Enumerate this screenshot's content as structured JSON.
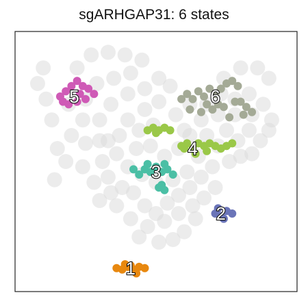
{
  "chart_data": {
    "type": "scatter",
    "title": "sgARHGAP31: 6 states",
    "xlabel": "",
    "ylabel": "",
    "grid": false,
    "legend": "none",
    "colors": {
      "background_cells": "#dcdcdc",
      "label_text": "#ffffff",
      "label_outline": "#111111",
      "frame": "#222222"
    },
    "background_cells": [
      [
        0.08,
        0.8
      ],
      [
        0.1,
        0.86
      ],
      [
        0.11,
        0.74
      ],
      [
        0.13,
        0.66
      ],
      [
        0.15,
        0.55
      ],
      [
        0.14,
        0.43
      ],
      [
        0.18,
        0.5
      ],
      [
        0.2,
        0.6
      ],
      [
        0.19,
        0.72
      ],
      [
        0.22,
        0.86
      ],
      [
        0.27,
        0.91
      ],
      [
        0.33,
        0.92
      ],
      [
        0.39,
        0.91
      ],
      [
        0.45,
        0.89
      ],
      [
        0.41,
        0.84
      ],
      [
        0.35,
        0.82
      ],
      [
        0.29,
        0.8
      ],
      [
        0.25,
        0.74
      ],
      [
        0.24,
        0.66
      ],
      [
        0.25,
        0.57
      ],
      [
        0.24,
        0.48
      ],
      [
        0.28,
        0.42
      ],
      [
        0.33,
        0.44
      ],
      [
        0.31,
        0.5
      ],
      [
        0.3,
        0.58
      ],
      [
        0.3,
        0.66
      ],
      [
        0.34,
        0.72
      ],
      [
        0.4,
        0.76
      ],
      [
        0.46,
        0.78
      ],
      [
        0.51,
        0.82
      ],
      [
        0.55,
        0.79
      ],
      [
        0.51,
        0.73
      ],
      [
        0.46,
        0.7
      ],
      [
        0.4,
        0.66
      ],
      [
        0.37,
        0.6
      ],
      [
        0.36,
        0.53
      ],
      [
        0.4,
        0.48
      ],
      [
        0.45,
        0.45
      ],
      [
        0.5,
        0.42
      ],
      [
        0.56,
        0.43
      ],
      [
        0.61,
        0.46
      ],
      [
        0.65,
        0.52
      ],
      [
        0.68,
        0.6
      ],
      [
        0.72,
        0.56
      ],
      [
        0.75,
        0.62
      ],
      [
        0.79,
        0.58
      ],
      [
        0.83,
        0.62
      ],
      [
        0.87,
        0.58
      ],
      [
        0.84,
        0.53
      ],
      [
        0.8,
        0.52
      ],
      [
        0.76,
        0.5
      ],
      [
        0.7,
        0.48
      ],
      [
        0.66,
        0.44
      ],
      [
        0.62,
        0.4
      ],
      [
        0.58,
        0.37
      ],
      [
        0.54,
        0.34
      ],
      [
        0.5,
        0.3
      ],
      [
        0.46,
        0.33
      ],
      [
        0.42,
        0.38
      ],
      [
        0.38,
        0.4
      ],
      [
        0.34,
        0.38
      ],
      [
        0.3,
        0.35
      ],
      [
        0.36,
        0.33
      ],
      [
        0.41,
        0.28
      ],
      [
        0.47,
        0.25
      ],
      [
        0.53,
        0.27
      ],
      [
        0.58,
        0.3
      ],
      [
        0.63,
        0.33
      ],
      [
        0.67,
        0.36
      ],
      [
        0.71,
        0.4
      ],
      [
        0.64,
        0.28
      ],
      [
        0.6,
        0.23
      ],
      [
        0.56,
        0.2
      ],
      [
        0.51,
        0.19
      ],
      [
        0.44,
        0.21
      ],
      [
        0.48,
        0.56
      ],
      [
        0.53,
        0.52
      ],
      [
        0.58,
        0.55
      ],
      [
        0.6,
        0.62
      ],
      [
        0.57,
        0.68
      ],
      [
        0.62,
        0.72
      ],
      [
        0.68,
        0.72
      ],
      [
        0.73,
        0.76
      ],
      [
        0.78,
        0.74
      ],
      [
        0.83,
        0.76
      ],
      [
        0.88,
        0.72
      ],
      [
        0.91,
        0.66
      ],
      [
        0.9,
        0.62
      ],
      [
        0.84,
        0.68
      ],
      [
        0.78,
        0.68
      ],
      [
        0.72,
        0.68
      ],
      [
        0.66,
        0.66
      ],
      [
        0.62,
        0.6
      ],
      [
        0.74,
        0.82
      ],
      [
        0.8,
        0.86
      ],
      [
        0.86,
        0.86
      ],
      [
        0.9,
        0.82
      ],
      [
        0.44,
        0.62
      ],
      [
        0.49,
        0.64
      ],
      [
        0.43,
        0.55
      ],
      [
        0.33,
        0.58
      ]
    ],
    "states": [
      {
        "label": "1",
        "color": "#e8880f",
        "center": [
          0.41,
          0.09
        ],
        "label_pos": [
          0.41,
          0.09
        ],
        "points": [
          [
            0.36,
            0.09
          ],
          [
            0.38,
            0.085
          ],
          [
            0.4,
            0.095
          ],
          [
            0.42,
            0.085
          ],
          [
            0.44,
            0.095
          ],
          [
            0.46,
            0.09
          ],
          [
            0.39,
            0.105
          ],
          [
            0.43,
            0.07
          ],
          [
            0.41,
            0.1
          ]
        ]
      },
      {
        "label": "2",
        "color": "#6a74b8",
        "center": [
          0.74,
          0.3
        ],
        "label_pos": [
          0.73,
          0.3
        ],
        "points": [
          [
            0.71,
            0.3
          ],
          [
            0.73,
            0.29
          ],
          [
            0.75,
            0.31
          ],
          [
            0.77,
            0.3
          ],
          [
            0.74,
            0.28
          ],
          [
            0.72,
            0.32
          ]
        ]
      },
      {
        "label": "3",
        "color": "#4bbfa5",
        "center": [
          0.5,
          0.46
        ],
        "label_pos": [
          0.5,
          0.46
        ],
        "points": [
          [
            0.42,
            0.47
          ],
          [
            0.44,
            0.45
          ],
          [
            0.46,
            0.47
          ],
          [
            0.48,
            0.46
          ],
          [
            0.5,
            0.48
          ],
          [
            0.52,
            0.46
          ],
          [
            0.54,
            0.47
          ],
          [
            0.56,
            0.45
          ],
          [
            0.47,
            0.49
          ],
          [
            0.53,
            0.49
          ],
          [
            0.51,
            0.4
          ],
          [
            0.53,
            0.39
          ],
          [
            0.52,
            0.41
          ]
        ]
      },
      {
        "label": "4",
        "color": "#9ac848",
        "center": [
          0.62,
          0.56
        ],
        "label_pos": [
          0.63,
          0.55
        ],
        "points": [
          [
            0.47,
            0.62
          ],
          [
            0.49,
            0.63
          ],
          [
            0.51,
            0.62
          ],
          [
            0.53,
            0.63
          ],
          [
            0.55,
            0.62
          ],
          [
            0.5,
            0.61
          ],
          [
            0.59,
            0.56
          ],
          [
            0.61,
            0.57
          ],
          [
            0.63,
            0.55
          ],
          [
            0.65,
            0.57
          ],
          [
            0.67,
            0.56
          ],
          [
            0.69,
            0.57
          ],
          [
            0.71,
            0.56
          ],
          [
            0.73,
            0.55
          ],
          [
            0.75,
            0.56
          ],
          [
            0.77,
            0.57
          ],
          [
            0.6,
            0.55
          ],
          [
            0.64,
            0.53
          ],
          [
            0.68,
            0.54
          ]
        ]
      },
      {
        "label": "5",
        "color": "#cf5ab6",
        "center": [
          0.22,
          0.75
        ],
        "label_pos": [
          0.21,
          0.75
        ],
        "points": [
          [
            0.16,
            0.75
          ],
          [
            0.18,
            0.77
          ],
          [
            0.2,
            0.79
          ],
          [
            0.22,
            0.81
          ],
          [
            0.24,
            0.79
          ],
          [
            0.26,
            0.78
          ],
          [
            0.28,
            0.76
          ],
          [
            0.25,
            0.74
          ],
          [
            0.22,
            0.73
          ],
          [
            0.19,
            0.72
          ],
          [
            0.17,
            0.73
          ],
          [
            0.23,
            0.76
          ]
        ]
      },
      {
        "label": "6",
        "color": "#a4aa96",
        "center": [
          0.7,
          0.74
        ],
        "label_pos": [
          0.71,
          0.75
        ],
        "points": [
          [
            0.59,
            0.74
          ],
          [
            0.61,
            0.76
          ],
          [
            0.63,
            0.74
          ],
          [
            0.65,
            0.77
          ],
          [
            0.67,
            0.75
          ],
          [
            0.69,
            0.78
          ],
          [
            0.71,
            0.76
          ],
          [
            0.73,
            0.78
          ],
          [
            0.75,
            0.8
          ],
          [
            0.77,
            0.81
          ],
          [
            0.79,
            0.79
          ],
          [
            0.8,
            0.73
          ],
          [
            0.82,
            0.71
          ],
          [
            0.84,
            0.69
          ],
          [
            0.62,
            0.7
          ],
          [
            0.66,
            0.69
          ],
          [
            0.7,
            0.7
          ],
          [
            0.74,
            0.71
          ],
          [
            0.78,
            0.73
          ],
          [
            0.81,
            0.68
          ],
          [
            0.76,
            0.67
          ],
          [
            0.68,
            0.72
          ],
          [
            0.72,
            0.72
          ]
        ]
      }
    ]
  }
}
